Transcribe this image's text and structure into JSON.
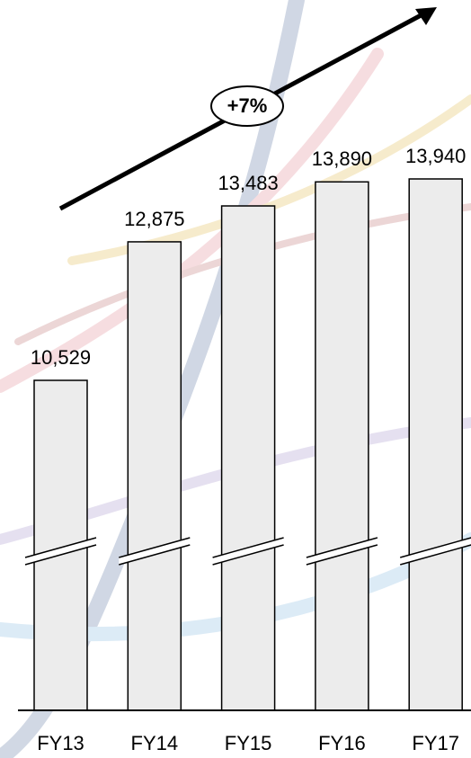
{
  "chart_data": {
    "type": "bar",
    "categories": [
      "FY13",
      "FY14",
      "FY15",
      "FY16",
      "FY17"
    ],
    "values": [
      10529,
      12875,
      13483,
      13890,
      13940
    ],
    "value_labels": [
      "10,529",
      "12,875",
      "13,483",
      "13,890",
      "13,940"
    ],
    "annotation": "+7%",
    "color": "#ececec"
  }
}
